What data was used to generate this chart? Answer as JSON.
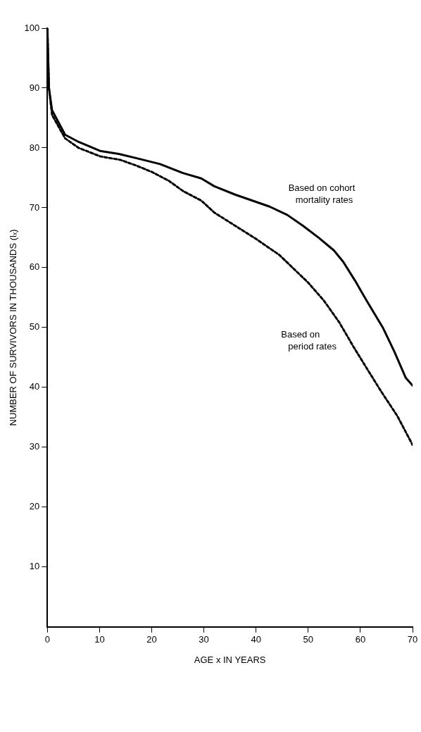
{
  "chart_data": {
    "type": "line",
    "xlabel": "AGE x IN YEARS",
    "ylabel": "NUMBER OF SURVIVORS IN THOUSANDS (lₓ)",
    "xlim": [
      0,
      70
    ],
    "xticks": [
      0,
      10,
      20,
      30,
      40,
      50,
      60,
      70
    ],
    "ylim": [
      0,
      100
    ],
    "yticks": [
      10,
      20,
      30,
      40,
      50,
      60,
      70,
      80,
      90,
      100
    ],
    "grid": false,
    "legend": false,
    "marker": "none",
    "series": [
      {
        "name": "Based on cohort mortality rates",
        "color": "#000000",
        "line_style": "solid",
        "x": [
          0,
          0.3,
          0.9,
          3.4,
          6,
          10.1,
          13.7,
          17,
          21.6,
          26,
          29.5,
          32,
          36,
          42.6,
          46,
          49,
          52,
          54.9,
          56.7,
          59,
          61.2,
          64.3,
          66.5,
          68.7,
          70
        ],
        "values": [
          100,
          90,
          86.3,
          82.2,
          81,
          79.5,
          79,
          78.3,
          77.3,
          75.8,
          74.9,
          73.6,
          72.2,
          70.2,
          68.8,
          67,
          65,
          62.9,
          61,
          57.8,
          54.5,
          50,
          46,
          41.6,
          40.3
        ]
      },
      {
        "name": "Based on period rates",
        "color": "#000000",
        "line_style": "dashed",
        "x": [
          0,
          0.3,
          0.9,
          3.4,
          6,
          10.1,
          14,
          17.2,
          20,
          23.3,
          26,
          29.5,
          32,
          36,
          40,
          44.5,
          47,
          50,
          53,
          56,
          58.6,
          61,
          64,
          67.1,
          70
        ],
        "values": [
          100,
          90,
          85.5,
          81.6,
          80,
          78.6,
          78,
          77,
          76,
          74.5,
          72.8,
          71.2,
          69.2,
          67,
          64.8,
          62.1,
          60,
          57.5,
          54.5,
          50.8,
          46.9,
          43.5,
          39.3,
          35.2,
          30.4
        ]
      }
    ]
  }
}
